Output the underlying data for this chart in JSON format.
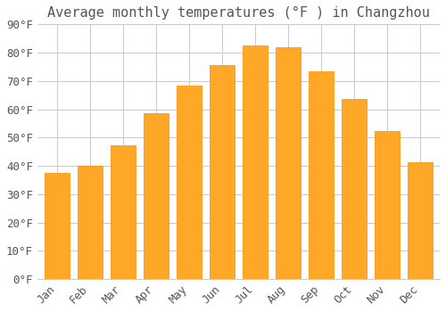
{
  "title": "Average monthly temperatures (°F ) in Changzhou",
  "months": [
    "Jan",
    "Feb",
    "Mar",
    "Apr",
    "May",
    "Jun",
    "Jul",
    "Aug",
    "Sep",
    "Oct",
    "Nov",
    "Dec"
  ],
  "values": [
    37.4,
    40.1,
    47.3,
    58.5,
    68.4,
    75.7,
    82.6,
    81.9,
    73.4,
    63.5,
    52.3,
    41.4
  ],
  "bar_color": "#FFA726",
  "bar_edge_color": "#FB8C00",
  "background_color": "#FFFFFF",
  "grid_color": "#CCCCCC",
  "ylim": [
    0,
    90
  ],
  "ytick_step": 10,
  "title_fontsize": 11,
  "tick_fontsize": 9,
  "font_family": "monospace",
  "text_color": "#555555"
}
